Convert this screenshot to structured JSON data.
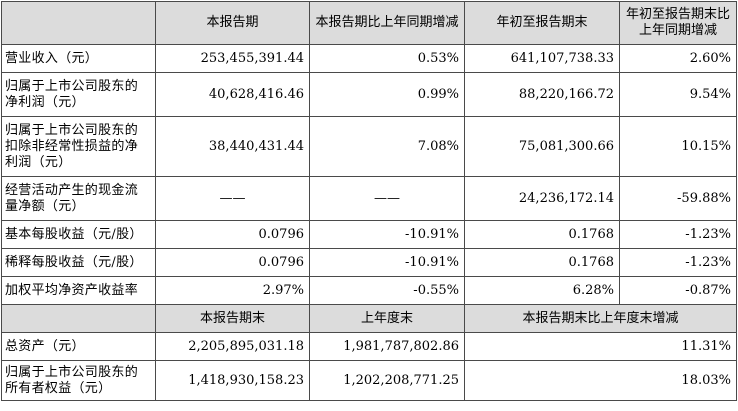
{
  "header1": {
    "blank": "",
    "col1": "本报告期",
    "col2": "本报告期比上年同期增减",
    "col3": "年初至报告期末",
    "col4": "年初至报告期末比上年同期增减"
  },
  "rows1": [
    {
      "label": "营业收入（元）",
      "v1": "253,455,391.44",
      "v2": "0.53%",
      "v3": "641,107,738.33",
      "v4": "2.60%"
    },
    {
      "label": "归属于上市公司股东的净利润（元）",
      "v1": "40,628,416.46",
      "v2": "0.99%",
      "v3": "88,220,166.72",
      "v4": "9.54%"
    },
    {
      "label": "归属于上市公司股东的扣除非经常性损益的净利润（元）",
      "v1": "38,440,431.44",
      "v2": "7.08%",
      "v3": "75,081,300.66",
      "v4": "10.15%"
    },
    {
      "label": "经营活动产生的现金流量净额（元）",
      "v1": "——",
      "v2": "——",
      "v3": "24,236,172.14",
      "v4": "-59.88%"
    },
    {
      "label": "基本每股收益（元/股）",
      "v1": "0.0796",
      "v2": "-10.91%",
      "v3": "0.1768",
      "v4": "-1.23%"
    },
    {
      "label": "稀释每股收益（元/股）",
      "v1": "0.0796",
      "v2": "-10.91%",
      "v3": "0.1768",
      "v4": "-1.23%"
    },
    {
      "label": "加权平均净资产收益率",
      "v1": "2.97%",
      "v2": "-0.55%",
      "v3": "6.28%",
      "v4": "-0.87%"
    }
  ],
  "header2": {
    "blank": "",
    "col1": "本报告期末",
    "col2": "上年度末",
    "col3": "本报告期末比上年度末增减"
  },
  "rows2": [
    {
      "label": "总资产（元）",
      "v1": "2,205,895,031.18",
      "v2": "1,981,787,802.86",
      "v3": "11.31%"
    },
    {
      "label": "归属于上市公司股东的所有者权益（元）",
      "v1": "1,418,930,158.23",
      "v2": "1,202,208,771.25",
      "v3": "18.03%"
    }
  ]
}
